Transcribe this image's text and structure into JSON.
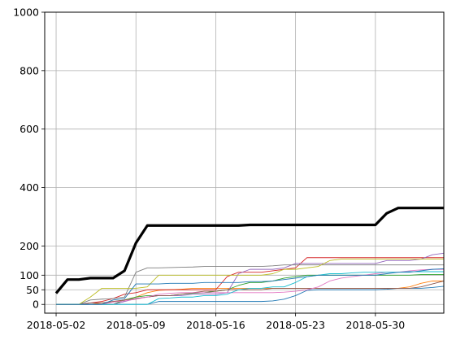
{
  "chart_data": {
    "type": "line",
    "title": "",
    "xlabel": "",
    "ylabel": "",
    "x_start": "2018-05-02",
    "x_end": "2018-06-04",
    "xlim": [
      "2018-05-01",
      "2018-06-05"
    ],
    "ylim": [
      -30,
      1000
    ],
    "grid": true,
    "x_ticks": [
      {
        "date": "2018-05-02",
        "label": "2018-05-02"
      },
      {
        "date": "2018-05-09",
        "label": "2018-05-09"
      },
      {
        "date": "2018-05-16",
        "label": "2018-05-16"
      },
      {
        "date": "2018-05-23",
        "label": "2018-05-23"
      },
      {
        "date": "2018-05-30",
        "label": "2018-05-30"
      }
    ],
    "y_ticks": [
      {
        "value": 0,
        "label": "0"
      },
      {
        "value": 50,
        "label": "50"
      },
      {
        "value": 100,
        "label": "100"
      },
      {
        "value": 200,
        "label": "200"
      },
      {
        "value": 400,
        "label": "400"
      },
      {
        "value": 600,
        "label": "600"
      },
      {
        "value": 800,
        "label": "800"
      },
      {
        "value": 1000,
        "label": "1000"
      }
    ],
    "series": [
      {
        "color": "#000000",
        "width": 3.2,
        "values": [
          38,
          85,
          85,
          90,
          90,
          90,
          115,
          210,
          270,
          270,
          270,
          270,
          270,
          270,
          270,
          270,
          270,
          272,
          272,
          272,
          272,
          272,
          272,
          272,
          272,
          272,
          272,
          272,
          272,
          312,
          330,
          330,
          330,
          330,
          330
        ]
      },
      {
        "color": "#1f77b4",
        "width": 0.9,
        "values": [
          0,
          0,
          0,
          0,
          0,
          0,
          0,
          0,
          0,
          10,
          10,
          10,
          10,
          10,
          10,
          10,
          10,
          10,
          10,
          12,
          18,
          30,
          48,
          50,
          50,
          50,
          50,
          50,
          50,
          52,
          55,
          55,
          55,
          58,
          62
        ]
      },
      {
        "color": "#ff7f0e",
        "width": 0.9,
        "values": [
          0,
          0,
          0,
          0,
          5,
          8,
          15,
          25,
          40,
          48,
          50,
          52,
          55,
          55,
          55,
          55,
          55,
          55,
          55,
          55,
          55,
          55,
          55,
          55,
          55,
          55,
          55,
          55,
          55,
          55,
          55,
          60,
          72,
          80,
          80
        ]
      },
      {
        "color": "#2ca02c",
        "width": 0.9,
        "values": [
          0,
          0,
          0,
          0,
          0,
          0,
          15,
          25,
          30,
          30,
          30,
          35,
          38,
          40,
          45,
          50,
          65,
          75,
          75,
          80,
          90,
          95,
          100,
          100,
          100,
          100,
          100,
          100,
          100,
          100,
          100,
          100,
          102,
          102,
          102
        ]
      },
      {
        "color": "#d62728",
        "width": 0.9,
        "values": [
          0,
          0,
          0,
          5,
          10,
          20,
          35,
          40,
          50,
          50,
          50,
          50,
          50,
          50,
          50,
          95,
          110,
          110,
          110,
          115,
          120,
          125,
          160,
          160,
          160,
          160,
          160,
          160,
          160,
          160,
          160,
          160,
          160,
          160,
          160
        ]
      },
      {
        "color": "#9467bd",
        "width": 0.9,
        "values": [
          0,
          0,
          0,
          0,
          0,
          0,
          10,
          20,
          25,
          30,
          30,
          30,
          35,
          35,
          35,
          40,
          105,
          120,
          120,
          120,
          125,
          140,
          140,
          140,
          140,
          140,
          140,
          140,
          140,
          150,
          150,
          150,
          155,
          170,
          175
        ]
      },
      {
        "color": "#8c564b",
        "width": 0.9,
        "values": [
          0,
          0,
          0,
          5,
          5,
          10,
          15,
          20,
          25,
          30,
          30,
          35,
          40,
          45,
          45,
          50,
          50,
          50,
          50,
          55,
          55,
          55,
          55,
          55,
          55,
          55,
          55,
          55,
          55,
          55,
          55,
          55,
          60,
          70,
          80
        ]
      },
      {
        "color": "#e377c2",
        "width": 0.9,
        "values": [
          0,
          0,
          0,
          0,
          0,
          8,
          12,
          18,
          25,
          35,
          38,
          40,
          40,
          40,
          40,
          40,
          40,
          40,
          40,
          40,
          42,
          45,
          50,
          60,
          80,
          90,
          95,
          100,
          105,
          110,
          110,
          115,
          118,
          120,
          120
        ]
      },
      {
        "color": "#7f7f7f",
        "width": 0.9,
        "values": [
          0,
          0,
          0,
          15,
          18,
          20,
          25,
          110,
          125,
          125,
          126,
          127,
          128,
          130,
          130,
          130,
          130,
          130,
          130,
          132,
          135,
          135,
          135,
          135,
          135,
          135,
          135,
          135,
          135,
          135,
          135,
          135,
          135,
          135,
          135
        ]
      },
      {
        "color": "#bcbd22",
        "width": 0.9,
        "values": [
          0,
          0,
          0,
          25,
          55,
          55,
          55,
          55,
          60,
          100,
          100,
          100,
          100,
          100,
          100,
          100,
          100,
          100,
          100,
          105,
          120,
          120,
          125,
          130,
          150,
          155,
          155,
          155,
          155,
          155,
          155,
          155,
          155,
          155,
          155
        ]
      },
      {
        "color": "#17becf",
        "width": 0.9,
        "values": [
          0,
          0,
          0,
          0,
          0,
          0,
          0,
          0,
          0,
          20,
          22,
          25,
          25,
          30,
          30,
          35,
          50,
          55,
          55,
          60,
          60,
          75,
          95,
          100,
          105,
          105,
          108,
          110,
          110,
          110,
          110,
          112,
          112,
          112,
          112
        ]
      },
      {
        "color": "#1f77b4",
        "width": 0.9,
        "values": [
          0,
          0,
          0,
          0,
          0,
          15,
          20,
          70,
          70,
          70,
          72,
          72,
          72,
          75,
          75,
          75,
          75,
          78,
          78,
          80,
          85,
          90,
          95,
          100,
          100,
          100,
          100,
          100,
          100,
          105,
          110,
          110,
          115,
          120,
          122
        ]
      }
    ]
  }
}
